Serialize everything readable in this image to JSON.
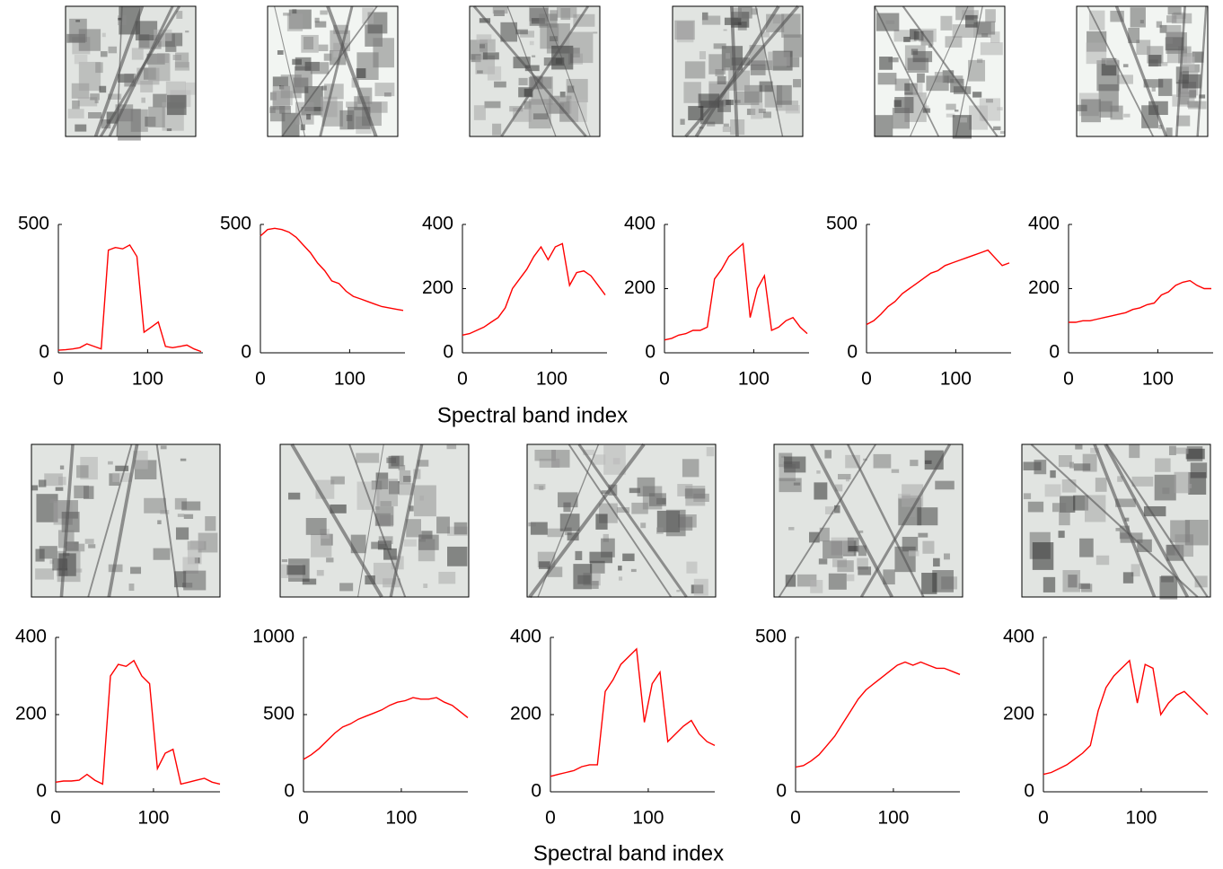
{
  "chart_data": [
    {
      "type": "line",
      "x": [
        0,
        8,
        16,
        24,
        32,
        40,
        48,
        56,
        64,
        72,
        80,
        88,
        96,
        104,
        112,
        120,
        128,
        136,
        144,
        152,
        160
      ],
      "values": [
        10,
        12,
        15,
        20,
        35,
        25,
        15,
        400,
        410,
        405,
        420,
        375,
        80,
        100,
        120,
        25,
        20,
        25,
        30,
        15,
        5
      ],
      "color": "#ff0000",
      "xlim": [
        0,
        162
      ],
      "xticks": [
        0,
        100
      ],
      "ylim": [
        0,
        500
      ],
      "yticks": [
        0,
        500
      ]
    },
    {
      "type": "line",
      "x": [
        0,
        8,
        16,
        24,
        32,
        40,
        48,
        56,
        64,
        72,
        80,
        88,
        96,
        104,
        112,
        120,
        128,
        136,
        144,
        152,
        160
      ],
      "values": [
        455,
        480,
        485,
        480,
        470,
        450,
        420,
        390,
        350,
        320,
        280,
        270,
        240,
        220,
        210,
        200,
        190,
        180,
        175,
        170,
        165
      ],
      "color": "#ff0000",
      "xlim": [
        0,
        162
      ],
      "xticks": [
        0,
        100
      ],
      "ylim": [
        0,
        500
      ],
      "yticks": [
        0,
        500
      ]
    },
    {
      "type": "line",
      "x": [
        0,
        8,
        16,
        24,
        32,
        40,
        48,
        56,
        64,
        72,
        80,
        88,
        96,
        104,
        112,
        120,
        128,
        136,
        144,
        152,
        160
      ],
      "values": [
        55,
        60,
        70,
        80,
        95,
        110,
        140,
        200,
        230,
        260,
        300,
        330,
        290,
        330,
        340,
        210,
        250,
        255,
        240,
        210,
        180
      ],
      "color": "#ff0000",
      "xlim": [
        0,
        162
      ],
      "xticks": [
        0,
        100
      ],
      "ylim": [
        0,
        400
      ],
      "yticks": [
        0,
        200,
        400
      ]
    },
    {
      "type": "line",
      "x": [
        0,
        8,
        16,
        24,
        32,
        40,
        48,
        56,
        64,
        72,
        80,
        88,
        96,
        104,
        112,
        120,
        128,
        136,
        144,
        152,
        160
      ],
      "values": [
        40,
        45,
        55,
        60,
        70,
        70,
        80,
        230,
        260,
        300,
        320,
        340,
        110,
        200,
        240,
        70,
        80,
        100,
        110,
        80,
        60
      ],
      "color": "#ff0000",
      "xlim": [
        0,
        162
      ],
      "xticks": [
        0,
        100
      ],
      "ylim": [
        0,
        400
      ],
      "yticks": [
        0,
        200,
        400
      ]
    },
    {
      "type": "line",
      "x": [
        0,
        8,
        16,
        24,
        32,
        40,
        48,
        56,
        64,
        72,
        80,
        88,
        96,
        104,
        112,
        120,
        128,
        136,
        144,
        152,
        160
      ],
      "values": [
        110,
        125,
        150,
        180,
        200,
        230,
        250,
        270,
        290,
        310,
        320,
        340,
        350,
        360,
        370,
        380,
        390,
        400,
        370,
        340,
        350
      ],
      "color": "#ff0000",
      "xlim": [
        0,
        162
      ],
      "xticks": [
        0,
        100
      ],
      "ylim": [
        0,
        500
      ],
      "yticks": [
        0,
        500
      ]
    },
    {
      "type": "line",
      "x": [
        0,
        8,
        16,
        24,
        32,
        40,
        48,
        56,
        64,
        72,
        80,
        88,
        96,
        104,
        112,
        120,
        128,
        136,
        144,
        152,
        160
      ],
      "values": [
        95,
        95,
        100,
        100,
        105,
        110,
        115,
        120,
        125,
        135,
        140,
        150,
        155,
        180,
        190,
        210,
        220,
        225,
        210,
        200,
        200
      ],
      "color": "#ff0000",
      "xlim": [
        0,
        162
      ],
      "xticks": [
        0,
        100
      ],
      "ylim": [
        0,
        400
      ],
      "yticks": [
        0,
        200,
        400
      ]
    },
    {
      "type": "line",
      "x": [
        0,
        8,
        16,
        24,
        32,
        40,
        48,
        56,
        64,
        72,
        80,
        88,
        96,
        104,
        112,
        120,
        128,
        136,
        144,
        152,
        160,
        168
      ],
      "values": [
        25,
        28,
        28,
        30,
        45,
        30,
        20,
        300,
        330,
        325,
        340,
        300,
        280,
        60,
        100,
        110,
        20,
        25,
        30,
        35,
        25,
        20
      ],
      "color": "#ff0000",
      "xlim": [
        0,
        168
      ],
      "xticks": [
        0,
        100
      ],
      "ylim": [
        0,
        400
      ],
      "yticks": [
        0,
        200,
        400
      ]
    },
    {
      "type": "line",
      "x": [
        0,
        8,
        16,
        24,
        32,
        40,
        48,
        56,
        64,
        72,
        80,
        88,
        96,
        104,
        112,
        120,
        128,
        136,
        144,
        152,
        160,
        168
      ],
      "values": [
        210,
        240,
        280,
        330,
        380,
        420,
        440,
        470,
        490,
        510,
        530,
        560,
        580,
        590,
        610,
        600,
        600,
        610,
        580,
        560,
        520,
        480
      ],
      "color": "#ff0000",
      "xlim": [
        0,
        168
      ],
      "xticks": [
        0,
        100
      ],
      "ylim": [
        0,
        1000
      ],
      "yticks": [
        0,
        500,
        1000
      ]
    },
    {
      "type": "line",
      "x": [
        0,
        8,
        16,
        24,
        32,
        40,
        48,
        56,
        64,
        72,
        80,
        88,
        96,
        104,
        112,
        120,
        128,
        136,
        144,
        152,
        160,
        168
      ],
      "values": [
        40,
        45,
        50,
        55,
        65,
        70,
        70,
        260,
        290,
        330,
        350,
        370,
        180,
        280,
        310,
        130,
        150,
        170,
        185,
        150,
        130,
        120
      ],
      "color": "#ff0000",
      "xlim": [
        0,
        168
      ],
      "xticks": [
        0,
        100
      ],
      "ylim": [
        0,
        400
      ],
      "yticks": [
        0,
        200,
        400
      ]
    },
    {
      "type": "line",
      "x": [
        0,
        8,
        16,
        24,
        32,
        40,
        48,
        56,
        64,
        72,
        80,
        88,
        96,
        104,
        112,
        120,
        128,
        136,
        144,
        152,
        160,
        168
      ],
      "values": [
        80,
        85,
        100,
        120,
        150,
        180,
        220,
        260,
        300,
        330,
        350,
        370,
        390,
        410,
        420,
        410,
        420,
        410,
        400,
        400,
        390,
        380
      ],
      "color": "#ff0000",
      "xlim": [
        0,
        168
      ],
      "xticks": [
        0,
        100
      ],
      "ylim": [
        0,
        500
      ],
      "yticks": [
        0,
        500
      ]
    },
    {
      "type": "line",
      "x": [
        0,
        8,
        16,
        24,
        32,
        40,
        48,
        56,
        64,
        72,
        80,
        88,
        96,
        104,
        112,
        120,
        128,
        136,
        144,
        152,
        160,
        168
      ],
      "values": [
        45,
        50,
        60,
        70,
        85,
        100,
        120,
        210,
        270,
        300,
        320,
        340,
        230,
        330,
        320,
        200,
        230,
        250,
        260,
        240,
        220,
        200
      ],
      "color": "#ff0000",
      "xlim": [
        0,
        168
      ],
      "xticks": [
        0,
        100
      ],
      "ylim": [
        0,
        400
      ],
      "yticks": [
        0,
        200,
        400
      ]
    }
  ],
  "row_labels": [
    "Spectral band index",
    "Spectral band index"
  ]
}
